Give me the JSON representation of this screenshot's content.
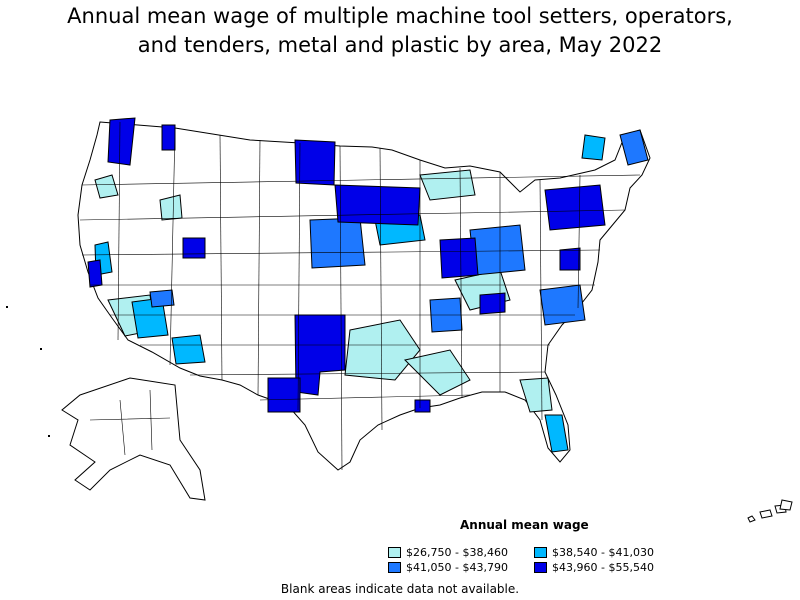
{
  "title_lines": [
    "Annual mean wage of multiple machine tool setters, operators,",
    "and tenders, metal and plastic by area, May 2022"
  ],
  "legend": {
    "title": "Annual mean wage",
    "items": [
      {
        "label": "$26,750 - $38,460",
        "color": "#b0f0f0"
      },
      {
        "label": "$38,540 - $41,030",
        "color": "#00b8ff"
      },
      {
        "label": "$41,050 - $43,790",
        "color": "#1e78ff"
      },
      {
        "label": "$43,960 - $55,540",
        "color": "#0000e8"
      }
    ]
  },
  "footnote": "Blank areas indicate data not available.",
  "colors": {
    "background": "#ffffff",
    "outline": "#000000",
    "no_data": "#ffffff"
  }
}
